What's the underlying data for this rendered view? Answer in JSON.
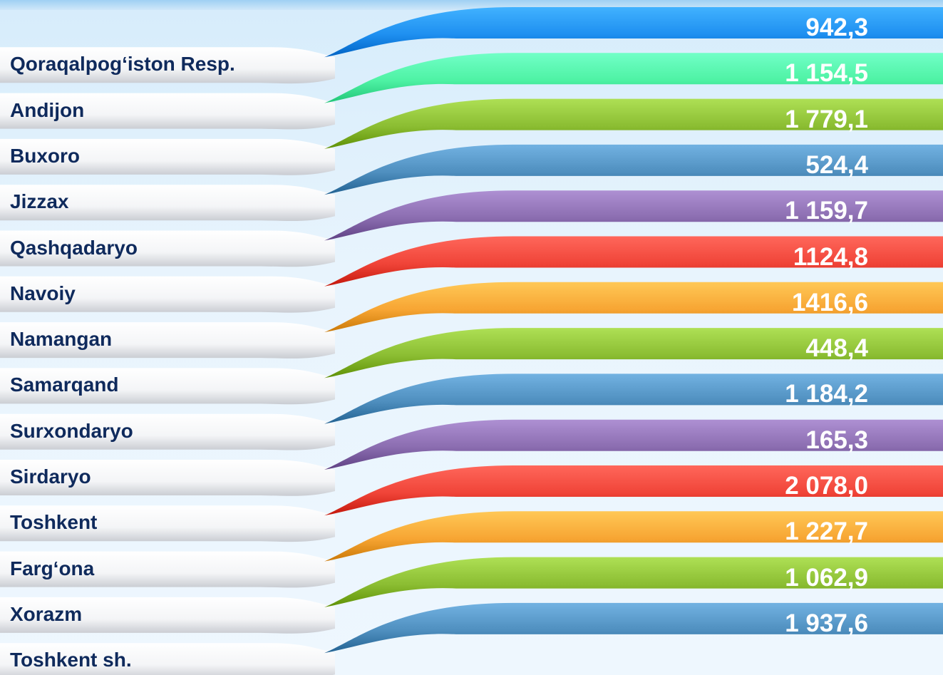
{
  "chart_data": {
    "type": "bar",
    "title": "",
    "xlabel": "",
    "ylabel": "",
    "categories": [
      "Qoraqalpog‘iston Resp.",
      "Andijon",
      "Buxoro",
      "Jizzax",
      "Qashqadaryo",
      "Navoiy",
      "Namangan",
      "Samarqand",
      "Surxondaryo",
      "Sirdaryo",
      "Toshkent",
      "Farg‘ona",
      "Xorazm",
      "Toshkent sh."
    ],
    "values": [
      942.3,
      1154.5,
      1779.1,
      524.4,
      1159.7,
      1124.8,
      1416.6,
      448.4,
      1184.2,
      165.3,
      2078.0,
      1227.7,
      1062.9,
      1937.6
    ],
    "value_labels": [
      "942,3",
      "1 154,5",
      "1 779,1",
      "524,4",
      "1 159,7",
      "1124,8",
      "1416,6",
      "448,4",
      "1 184,2",
      "165,3",
      "2 078,0",
      "1 227,7",
      "1 062,9",
      "1 937,6"
    ],
    "colors": [
      "#1e8ff0",
      "#4ef2a4",
      "#8bbd32",
      "#4f8fbf",
      "#8b6db0",
      "#f04438",
      "#f7a533",
      "#8bbd32",
      "#4f8fbf",
      "#8b6db0",
      "#f04438",
      "#f7a533",
      "#8bbd32",
      "#4f8fbf"
    ],
    "grid": false,
    "legend": "none"
  }
}
